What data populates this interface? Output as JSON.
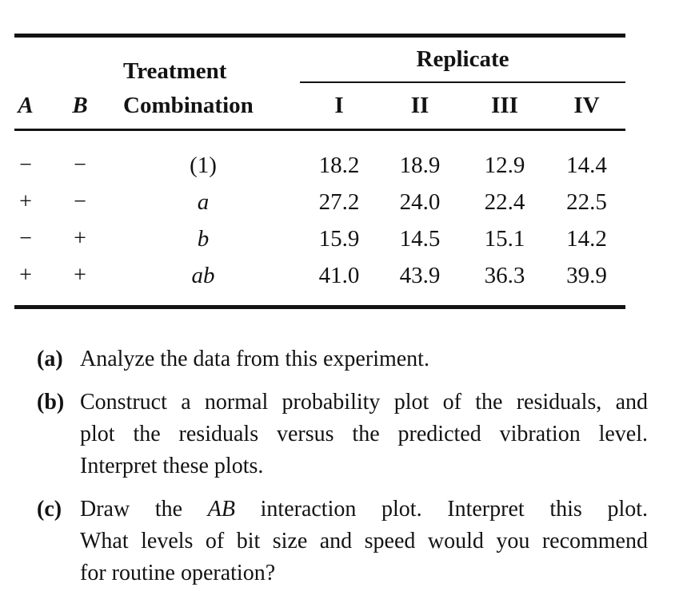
{
  "document": {
    "background": "#ffffff",
    "text_color": "#131313"
  },
  "table": {
    "headers": {
      "factor_a": "A",
      "factor_b": "B",
      "treatment_line1": "Treatment",
      "treatment_line2": "Combination",
      "replicate_group": "Replicate",
      "replicate_cols": [
        "I",
        "II",
        "III",
        "IV"
      ]
    },
    "rows": [
      {
        "a": "−",
        "b": "−",
        "treatment": "(1)",
        "treatment_italic": false,
        "values": [
          "18.2",
          "18.9",
          "12.9",
          "14.4"
        ]
      },
      {
        "a": "+",
        "b": "−",
        "treatment": "a",
        "treatment_italic": true,
        "values": [
          "27.2",
          "24.0",
          "22.4",
          "22.5"
        ]
      },
      {
        "a": "−",
        "b": "+",
        "treatment": "b",
        "treatment_italic": true,
        "values": [
          "15.9",
          "14.5",
          "15.1",
          "14.2"
        ]
      },
      {
        "a": "+",
        "b": "+",
        "treatment": "ab",
        "treatment_italic": true,
        "values": [
          "41.0",
          "43.9",
          "36.3",
          "39.9"
        ]
      }
    ]
  },
  "questions": [
    {
      "label": "(a)",
      "lines": [
        {
          "justify": false,
          "segments": [
            {
              "text": "Analyze the data from this experiment."
            }
          ]
        }
      ]
    },
    {
      "label": "(b)",
      "lines": [
        {
          "justify": true,
          "segments": [
            {
              "text": "Construct a normal probability plot of the residuals, and"
            }
          ]
        },
        {
          "justify": true,
          "segments": [
            {
              "text": "plot the residuals versus the predicted vibration level."
            }
          ]
        },
        {
          "justify": false,
          "segments": [
            {
              "text": "Interpret these plots."
            }
          ]
        }
      ]
    },
    {
      "label": "(c)",
      "lines": [
        {
          "justify": true,
          "segments": [
            {
              "text": "Draw the "
            },
            {
              "text": "AB",
              "italic": true
            },
            {
              "text": " interaction plot. Interpret this plot."
            }
          ]
        },
        {
          "justify": true,
          "segments": [
            {
              "text": "What levels of bit size and speed would you recommend"
            }
          ]
        },
        {
          "justify": false,
          "segments": [
            {
              "text": "for routine operation?"
            }
          ]
        }
      ]
    }
  ]
}
